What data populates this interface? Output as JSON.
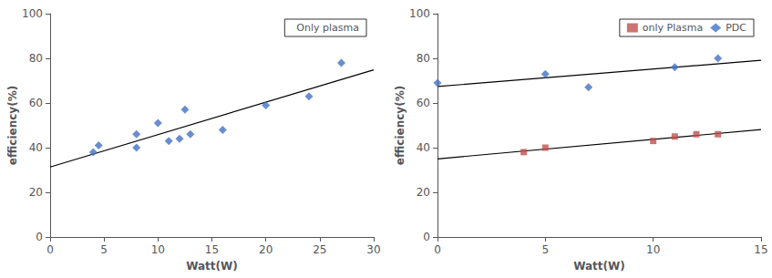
{
  "chart_data": [
    {
      "type": "scatter",
      "xlabel": "Watt(W)",
      "ylabel": "efficiency(%)",
      "xlim": [
        0,
        30
      ],
      "ylim": [
        0,
        100
      ],
      "xticks": [
        0,
        5,
        10,
        15,
        20,
        25,
        30
      ],
      "yticks": [
        0,
        20,
        40,
        60,
        80,
        100
      ],
      "grid": false,
      "legend": "upper right",
      "series": [
        {
          "name": "Only plasma",
          "type": "scatter",
          "color": "#4472C4",
          "marker": "diamond",
          "x": [
            4,
            4.5,
            8,
            8,
            10,
            11,
            12,
            12.5,
            13,
            16,
            20,
            24,
            27
          ],
          "values": [
            38,
            41,
            40,
            46,
            51,
            43,
            44,
            57,
            46,
            48,
            59,
            63,
            78
          ]
        },
        {
          "type": "line",
          "color": "#000000",
          "line_style": "solid",
          "x": [
            0,
            30
          ],
          "values": [
            31.33,
            74.87
          ]
        }
      ]
    },
    {
      "type": "scatter",
      "xlabel": "Watt(W)",
      "ylabel": "efficiency(%)",
      "xlim": [
        0,
        15
      ],
      "ylim": [
        0,
        100
      ],
      "xticks": [
        0,
        5,
        10,
        15
      ],
      "yticks": [
        0,
        20,
        40,
        60,
        80,
        100
      ],
      "grid": false,
      "legend": "upper right",
      "series": [
        {
          "name": "only Plasma",
          "type": "scatter",
          "color": "#C0504D",
          "marker": "square",
          "x": [
            4,
            5,
            10,
            11,
            12,
            13
          ],
          "values": [
            38,
            40,
            43,
            45,
            46,
            46
          ]
        },
        {
          "name": "PDC",
          "type": "scatter",
          "color": "#4472C4",
          "marker": "diamond",
          "x": [
            0,
            5,
            7,
            11,
            13
          ],
          "values": [
            69,
            73,
            67,
            76,
            80
          ]
        },
        {
          "type": "line",
          "color": "#000000",
          "line_style": "solid",
          "x": [
            0,
            15
          ],
          "values": [
            34.98,
            48.11
          ]
        },
        {
          "type": "line",
          "color": "#000000",
          "line_style": "solid",
          "x": [
            0,
            15
          ],
          "values": [
            67.37,
            79.1
          ]
        }
      ]
    }
  ]
}
